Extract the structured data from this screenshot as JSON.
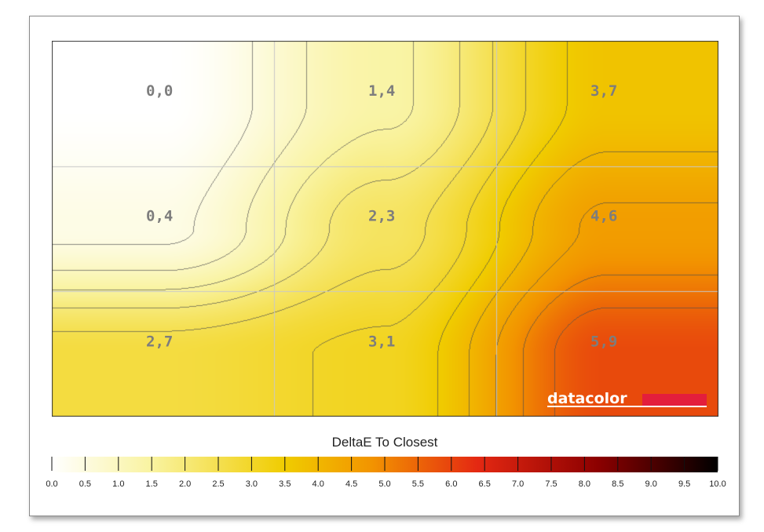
{
  "chart_data": {
    "type": "heatmap",
    "title": "",
    "rows": 3,
    "cols": 3,
    "cells": [
      [
        "0,0",
        "1,4",
        "3,7"
      ],
      [
        "0,4",
        "2,3",
        "4,6"
      ],
      [
        "2,7",
        "3,1",
        "5,9"
      ]
    ],
    "values": [
      [
        0.0,
        1.4,
        3.7
      ],
      [
        0.4,
        2.3,
        4.6
      ],
      [
        2.7,
        3.1,
        5.9
      ]
    ],
    "grid": true,
    "contour_lines": true,
    "legend": {
      "title": "DeltaE To Closest",
      "min": 0.0,
      "max": 10.0,
      "ticks": [
        "0.0",
        "0.5",
        "1.0",
        "1.5",
        "2.0",
        "2.5",
        "3.0",
        "3.5",
        "4.0",
        "4.5",
        "5.0",
        "5.5",
        "6.0",
        "6.5",
        "7.0",
        "7.5",
        "8.0",
        "8.5",
        "9.0",
        "9.5",
        "10.0"
      ],
      "placement": "bottom"
    }
  },
  "brand": {
    "logo_text": "datacolor",
    "accent_color": "#e31e3c"
  },
  "colors": {
    "scale": [
      "#ffffff",
      "#f9f3a0",
      "#f0cc00",
      "#f29400",
      "#e42812",
      "#8c0000",
      "#000000"
    ],
    "contour": "#4d4d4d",
    "grid": "#c8c8c8"
  }
}
